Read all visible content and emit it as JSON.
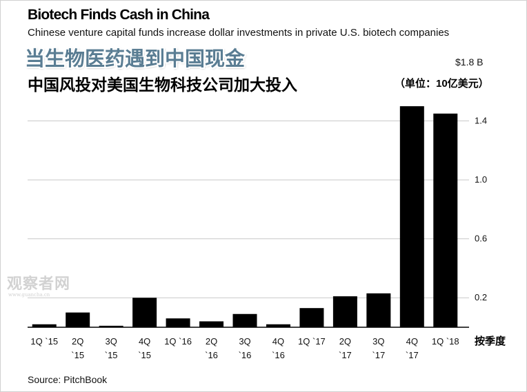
{
  "header": {
    "title": "Biotech Finds Cash in China",
    "subtitle": "Chinese venture capital funds increase dollar investments in private U.S. biotech companies",
    "zh_title": "当生物医药遇到中国现金",
    "zh_subtitle": "中国风投对美国生物科技公司加大投入"
  },
  "axis": {
    "top_label": "$1.8 B",
    "unit_label": "（单位：10亿美元）",
    "x_unit_label": "按季度"
  },
  "source": "Source: PitchBook",
  "watermark": {
    "main": "观察者网",
    "url": "www.guancha.cn"
  },
  "colors": {
    "bar": "#000000",
    "grid": "#c8c8c8",
    "zh_title": "#5a7d93"
  },
  "chart_data": {
    "type": "bar",
    "title": "Biotech Finds Cash in China",
    "ylabel": "$ billions",
    "ylim": [
      0,
      1.8
    ],
    "yticks": [
      0.2,
      0.6,
      1.0,
      1.4
    ],
    "grid": true,
    "categories": [
      [
        "1Q `15"
      ],
      [
        "2Q",
        "`15"
      ],
      [
        "3Q",
        "`15"
      ],
      [
        "4Q",
        "`15"
      ],
      [
        "1Q `16"
      ],
      [
        "2Q",
        "`16"
      ],
      [
        "3Q",
        "`16"
      ],
      [
        "4Q",
        "`16"
      ],
      [
        "1Q `17"
      ],
      [
        "2Q",
        "`17"
      ],
      [
        "3Q",
        "`17"
      ],
      [
        "4Q",
        "`17"
      ],
      [
        "1Q `18"
      ]
    ],
    "values": [
      0.02,
      0.1,
      0.01,
      0.2,
      0.06,
      0.04,
      0.09,
      0.02,
      0.13,
      0.21,
      0.23,
      1.5,
      1.45
    ]
  }
}
